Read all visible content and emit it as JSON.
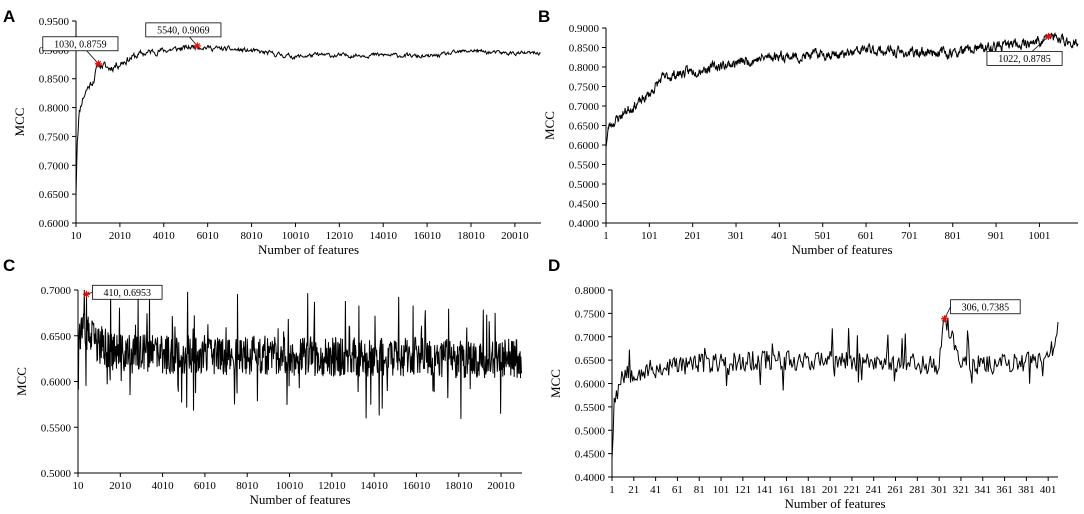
{
  "chart_data": [
    {
      "panel": "A",
      "type": "line",
      "xlabel": "Number of features",
      "ylabel": "MCC",
      "xlim": [
        10,
        21200
      ],
      "ylim": [
        0.6,
        0.95
      ],
      "xticks": [
        10,
        2010,
        4010,
        6010,
        8010,
        10010,
        12010,
        14010,
        16010,
        18010,
        20010
      ],
      "yticks": [
        "0.6000",
        "0.6500",
        "0.7000",
        "0.7500",
        "0.8000",
        "0.8500",
        "0.9000",
        "0.9500"
      ],
      "anchors": [
        [
          10,
          0.65
        ],
        [
          60,
          0.74
        ],
        [
          150,
          0.79
        ],
        [
          300,
          0.815
        ],
        [
          500,
          0.832
        ],
        [
          800,
          0.848
        ],
        [
          1030,
          0.8759
        ],
        [
          1500,
          0.868
        ],
        [
          2000,
          0.877
        ],
        [
          2500,
          0.886
        ],
        [
          3000,
          0.893
        ],
        [
          3500,
          0.897
        ],
        [
          4010,
          0.899
        ],
        [
          4500,
          0.901
        ],
        [
          5000,
          0.903
        ],
        [
          5540,
          0.9069
        ],
        [
          6010,
          0.904
        ],
        [
          6500,
          0.902
        ],
        [
          7000,
          0.901
        ],
        [
          8010,
          0.898
        ],
        [
          9000,
          0.893
        ],
        [
          10010,
          0.888
        ],
        [
          11000,
          0.891
        ],
        [
          12010,
          0.89
        ],
        [
          13000,
          0.891
        ],
        [
          14010,
          0.891
        ],
        [
          15000,
          0.89
        ],
        [
          16010,
          0.888
        ],
        [
          17000,
          0.893
        ],
        [
          18010,
          0.899
        ],
        [
          19000,
          0.895
        ],
        [
          20010,
          0.894
        ],
        [
          21200,
          0.894
        ]
      ],
      "noise": 0.006,
      "annotations": [
        {
          "x": 1030,
          "y": 0.8759,
          "label": "1030, 0.8759"
        },
        {
          "x": 5540,
          "y": 0.9069,
          "label": "5540, 0.9069"
        }
      ]
    },
    {
      "panel": "B",
      "type": "line",
      "xlabel": "Number of features",
      "ylabel": "MCC",
      "xlim": [
        1,
        1090
      ],
      "ylim": [
        0.4,
        0.9
      ],
      "xticks": [
        1,
        101,
        201,
        301,
        401,
        501,
        601,
        701,
        801,
        901,
        1001
      ],
      "yticks": [
        "0.4000",
        "0.4500",
        "0.5000",
        "0.5500",
        "0.6000",
        "0.6500",
        "0.7000",
        "0.7500",
        "0.8000",
        "0.8500",
        "0.9000"
      ],
      "anchors": [
        [
          1,
          0.6
        ],
        [
          8,
          0.65
        ],
        [
          20,
          0.66
        ],
        [
          50,
          0.69
        ],
        [
          80,
          0.71
        ],
        [
          101,
          0.73
        ],
        [
          130,
          0.77
        ],
        [
          160,
          0.78
        ],
        [
          201,
          0.79
        ],
        [
          250,
          0.8
        ],
        [
          301,
          0.81
        ],
        [
          350,
          0.82
        ],
        [
          401,
          0.83
        ],
        [
          450,
          0.825
        ],
        [
          501,
          0.835
        ],
        [
          550,
          0.83
        ],
        [
          601,
          0.845
        ],
        [
          650,
          0.84
        ],
        [
          701,
          0.835
        ],
        [
          750,
          0.84
        ],
        [
          801,
          0.835
        ],
        [
          850,
          0.845
        ],
        [
          901,
          0.85
        ],
        [
          950,
          0.86
        ],
        [
          1001,
          0.865
        ],
        [
          1022,
          0.8785
        ],
        [
          1050,
          0.87
        ],
        [
          1090,
          0.86
        ]
      ],
      "noise": 0.01,
      "annotations": [
        {
          "x": 1022,
          "y": 0.8785,
          "label": "1022, 0.8785"
        }
      ]
    },
    {
      "panel": "C",
      "type": "line",
      "xlabel": "Number of features",
      "ylabel": "MCC",
      "xlim": [
        10,
        21000
      ],
      "ylim": [
        0.5,
        0.7
      ],
      "xticks": [
        10,
        2010,
        4010,
        6010,
        8010,
        10010,
        12010,
        14010,
        16010,
        18010,
        20010
      ],
      "yticks": [
        "0.5000",
        "0.5500",
        "0.6000",
        "0.6500",
        "0.7000"
      ],
      "anchors": [
        [
          10,
          0.655
        ],
        [
          500,
          0.65
        ],
        [
          1000,
          0.64
        ],
        [
          2010,
          0.63
        ],
        [
          21000,
          0.625
        ]
      ],
      "noise": 0.022,
      "annotations": [
        {
          "x": 410,
          "y": 0.6953,
          "label": "410, 0.6953"
        }
      ]
    },
    {
      "panel": "D",
      "type": "line",
      "xlabel": "Number of features",
      "ylabel": "MCC",
      "xlim": [
        1,
        410
      ],
      "ylim": [
        0.4,
        0.8
      ],
      "xticks": [
        1,
        21,
        41,
        61,
        81,
        101,
        121,
        141,
        161,
        181,
        201,
        221,
        241,
        261,
        281,
        301,
        321,
        341,
        361,
        381,
        401
      ],
      "yticks": [
        "0.4000",
        "0.4500",
        "0.5000",
        "0.5500",
        "0.6000",
        "0.6500",
        "0.7000",
        "0.7500",
        "0.8000"
      ],
      "anchors": [
        [
          1,
          0.45
        ],
        [
          3,
          0.56
        ],
        [
          6,
          0.6
        ],
        [
          10,
          0.62
        ],
        [
          21,
          0.625
        ],
        [
          41,
          0.63
        ],
        [
          61,
          0.64
        ],
        [
          101,
          0.645
        ],
        [
          141,
          0.65
        ],
        [
          181,
          0.65
        ],
        [
          221,
          0.648
        ],
        [
          261,
          0.645
        ],
        [
          301,
          0.64
        ],
        [
          306,
          0.7385
        ],
        [
          321,
          0.645
        ],
        [
          341,
          0.64
        ],
        [
          361,
          0.645
        ],
        [
          381,
          0.645
        ],
        [
          401,
          0.65
        ],
        [
          407,
          0.695
        ]
      ],
      "noise": 0.022,
      "annotations": [
        {
          "x": 306,
          "y": 0.7385,
          "label": "306, 0.7385"
        }
      ]
    }
  ]
}
